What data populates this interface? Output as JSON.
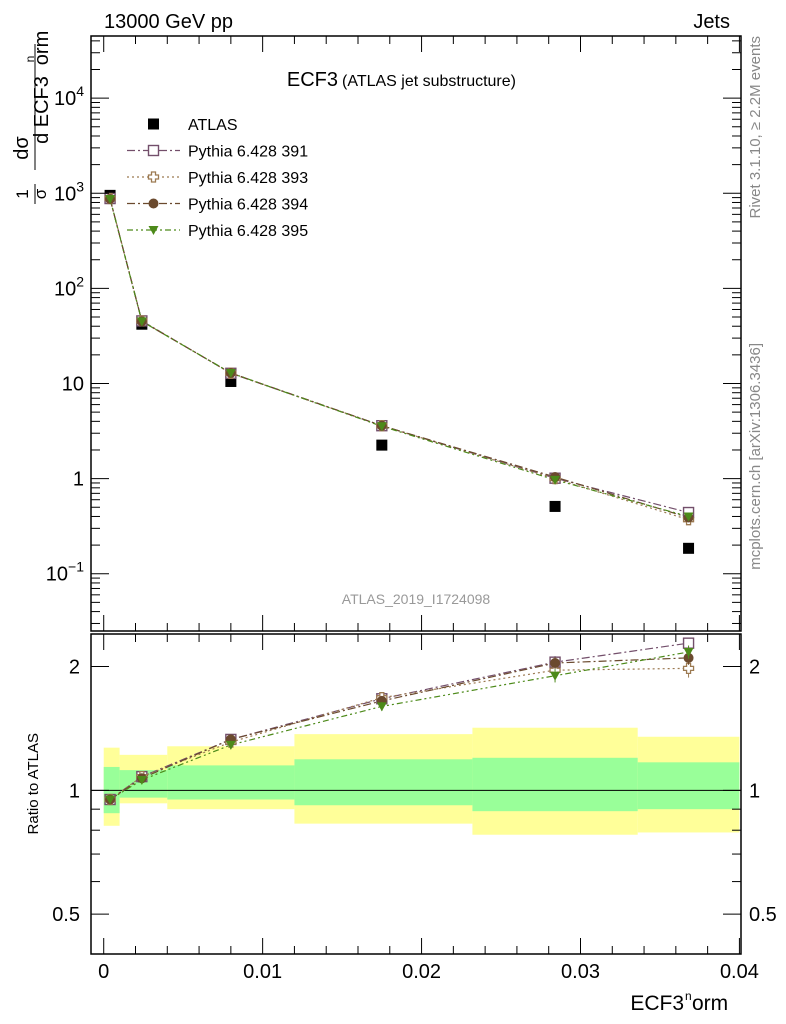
{
  "header": {
    "left": "13000 GeV pp",
    "right": "Jets"
  },
  "side_text": {
    "rivet": "Rivet 3.1.10, ≥ 2.2M events",
    "mcplots": "mcplots.cern.ch [arXiv:1306.3436]"
  },
  "chart_data": [
    {
      "type": "scatter",
      "panel": "main",
      "title_main": "ECF3",
      "title_sub": "(ATLAS jet substructure)",
      "ylabel": "1/σ dσ/d ECF3^norm",
      "watermark": "ATLAS_2019_I1724098",
      "yscale": "log",
      "ylim": [
        0.025,
        45000
      ],
      "xlim": [
        -0.0008,
        0.0401
      ],
      "ytick_labels": [
        "10^-1",
        "1",
        "10",
        "10^2",
        "10^3",
        "10^4"
      ],
      "ytick_values": [
        0.1,
        1,
        10,
        100,
        1000,
        10000
      ],
      "legend_placement": "top-left",
      "x": [
        0.0004,
        0.0024,
        0.008,
        0.0175,
        0.0284,
        0.0368
      ],
      "series": [
        {
          "name": "ATLAS",
          "marker": "filled-square",
          "color": "#000000",
          "values": [
            950,
            42,
            10.5,
            2.25,
            0.51,
            0.185
          ]
        },
        {
          "name": "Pythia 6.428 391",
          "marker": "open-square",
          "color": "#734f6b",
          "line": "dash-dot",
          "values": [
            880,
            45.5,
            12.8,
            3.6,
            1.01,
            0.44
          ]
        },
        {
          "name": "Pythia 6.428 393",
          "marker": "open-cross",
          "color": "#9c7a52",
          "line": "dotted",
          "values": [
            880,
            45.5,
            12.8,
            3.6,
            1.0,
            0.37
          ]
        },
        {
          "name": "Pythia 6.428 394",
          "marker": "filled-circle",
          "color": "#6b4a2e",
          "line": "dash-dot",
          "values": [
            870,
            45.0,
            12.9,
            3.6,
            1.04,
            0.39
          ]
        },
        {
          "name": "Pythia 6.428 395",
          "marker": "filled-triangle-down",
          "color": "#4d8a1a",
          "line": "dash-dot-dot",
          "values": [
            870,
            45.0,
            12.9,
            3.55,
            0.97,
            0.4
          ]
        }
      ]
    },
    {
      "type": "scatter",
      "panel": "ratio",
      "ylabel": "Ratio to ATLAS",
      "xlabel": "ECF3^norm",
      "yscale": "log",
      "ylim": [
        0.4,
        2.4
      ],
      "xlim": [
        -0.0008,
        0.0401
      ],
      "xtick_labels": [
        "0",
        "0.01",
        "0.02",
        "0.03",
        "0.04"
      ],
      "xtick_values": [
        0,
        0.01,
        0.02,
        0.03,
        0.04
      ],
      "ytick_labels": [
        "0.5",
        "1",
        "2"
      ],
      "ytick_values": [
        0.5,
        1,
        2
      ],
      "reference_line": 1,
      "bands": [
        {
          "x_low": 0.0,
          "x_high": 0.001,
          "inner": [
            0.88,
            1.14
          ],
          "outer": [
            0.82,
            1.27
          ]
        },
        {
          "x_low": 0.001,
          "x_high": 0.004,
          "inner": [
            0.96,
            1.12
          ],
          "outer": [
            0.93,
            1.22
          ]
        },
        {
          "x_low": 0.004,
          "x_high": 0.012,
          "inner": [
            0.95,
            1.15
          ],
          "outer": [
            0.9,
            1.28
          ]
        },
        {
          "x_low": 0.012,
          "x_high": 0.0232,
          "inner": [
            0.92,
            1.19
          ],
          "outer": [
            0.83,
            1.37
          ]
        },
        {
          "x_low": 0.0232,
          "x_high": 0.0336,
          "inner": [
            0.89,
            1.2
          ],
          "outer": [
            0.78,
            1.42
          ]
        },
        {
          "x_low": 0.0336,
          "x_high": 0.04,
          "inner": [
            0.9,
            1.17
          ],
          "outer": [
            0.79,
            1.35
          ]
        }
      ],
      "band_colors": {
        "inner": "#99ff99",
        "outer": "#ffff99"
      },
      "x": [
        0.0004,
        0.0024,
        0.008,
        0.0175,
        0.0284,
        0.0368
      ],
      "series": [
        {
          "name": "Pythia 6.428 391",
          "values": [
            0.95,
            1.08,
            1.33,
            1.67,
            2.05,
            2.28
          ],
          "errors": [
            0.02,
            0.02,
            0.03,
            0.04,
            0.07,
            0.06
          ]
        },
        {
          "name": "Pythia 6.428 393",
          "values": [
            0.95,
            1.08,
            1.31,
            1.68,
            1.96,
            1.98
          ],
          "errors": [
            0.02,
            0.02,
            0.03,
            0.04,
            0.07,
            0.1
          ]
        },
        {
          "name": "Pythia 6.428 394",
          "values": [
            0.95,
            1.07,
            1.33,
            1.65,
            2.04,
            2.1
          ],
          "errors": [
            0.02,
            0.02,
            0.03,
            0.04,
            0.07,
            0.08
          ]
        },
        {
          "name": "Pythia 6.428 395",
          "values": [
            0.95,
            1.06,
            1.29,
            1.6,
            1.9,
            2.17
          ],
          "errors": [
            0.02,
            0.02,
            0.03,
            0.04,
            0.07,
            0.08
          ]
        }
      ]
    }
  ]
}
